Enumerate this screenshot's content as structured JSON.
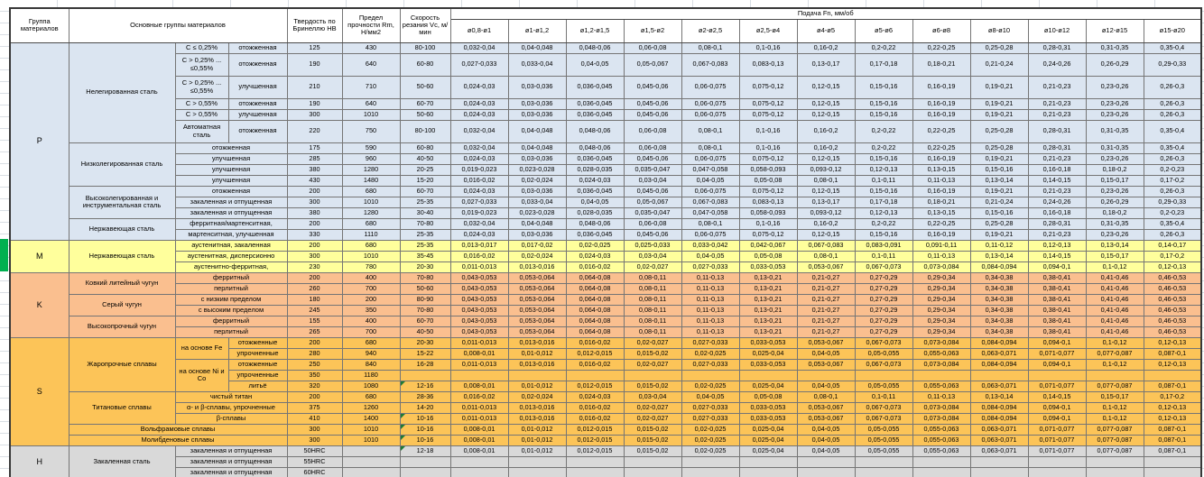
{
  "sheet": {
    "colors": {
      "group_p_blue": "#dbe5f1",
      "group_m_yellow": "#ffff9c",
      "group_k_orange": "#fabf8f",
      "group_s_gold": "#fcc458",
      "group_h_gray": "#d9d9d9",
      "row_marker_green": "#00b050",
      "cell_corner_triangle_green": "#1f7a36"
    }
  },
  "header": {
    "col_group": "Группа материалов",
    "col_main": "Основные группы материалов",
    "col_hb": "Твердость по Бринеллю НВ",
    "col_rm": "Предел прочности Rm, Н/мм2",
    "col_vc": "Скорость резания Vc, м/мин",
    "feed_title": "Подача Fn, мм/об",
    "feed_cols": [
      "ø0,8-ø1",
      "ø1-ø1,2",
      "ø1,2-ø1,5",
      "ø1,5-ø2",
      "ø2-ø2,5",
      "ø2,5-ø4",
      "ø4-ø5",
      "ø5-ø6",
      "ø6-ø8",
      "ø8-ø10",
      "ø10-ø12",
      "ø12-ø15",
      "ø15-ø20"
    ]
  },
  "table": {
    "feed_sets": {
      "A": [
        "0,032-0,04",
        "0,04-0,048",
        "0,048-0,06",
        "0,06-0,08",
        "0,08-0,1",
        "0,1-0,16",
        "0,16-0,2",
        "0,2-0,22",
        "0,22-0,25",
        "0,25-0,28",
        "0,28-0,31",
        "0,31-0,35",
        "0,35-0,4"
      ],
      "B": [
        "0,027-0,033",
        "0,033-0,04",
        "0,04-0,05",
        "0,05-0,067",
        "0,067-0,083",
        "0,083-0,13",
        "0,13-0,17",
        "0,17-0,18",
        "0,18-0,21",
        "0,21-0,24",
        "0,24-0,26",
        "0,26-0,29",
        "0,29-0,33"
      ],
      "C": [
        "0,024-0,03",
        "0,03-0,036",
        "0,036-0,045",
        "0,045-0,06",
        "0,06-0,075",
        "0,075-0,12",
        "0,12-0,15",
        "0,15-0,16",
        "0,16-0,19",
        "0,19-0,21",
        "0,21-0,23",
        "0,23-0,26",
        "0,26-0,3"
      ],
      "D": [
        "0,019-0,023",
        "0,023-0,028",
        "0,028-0,035",
        "0,035-0,047",
        "0,047-0,058",
        "0,058-0,093",
        "0,093-0,12",
        "0,12-0,13",
        "0,13-0,15",
        "0,15-0,16",
        "0,16-0,18",
        "0,18-0,2",
        "0,2-0,23"
      ],
      "E": [
        "0,016-0,02",
        "0,02-0,024",
        "0,024-0,03",
        "0,03-0,04",
        "0,04-0,05",
        "0,05-0,08",
        "0,08-0,1",
        "0,1-0,11",
        "0,11-0,13",
        "0,13-0,14",
        "0,14-0,15",
        "0,15-0,17",
        "0,17-0,2"
      ],
      "F": [
        "0,013-0,017",
        "0,017-0,02",
        "0,02-0,025",
        "0,025-0,033",
        "0,033-0,042",
        "0,042-0,067",
        "0,067-0,083",
        "0,083-0,091",
        "0,091-0,11",
        "0,11-0,12",
        "0,12-0,13",
        "0,13-0,14",
        "0,14-0,17"
      ],
      "G": [
        "0,011-0,013",
        "0,013-0,016",
        "0,016-0,02",
        "0,02-0,027",
        "0,027-0,033",
        "0,033-0,053",
        "0,053-0,067",
        "0,067-0,073",
        "0,073-0,084",
        "0,084-0,094",
        "0,094-0,1",
        "0,1-0,12",
        "0,12-0,13"
      ],
      "H": [
        "0,043-0,053",
        "0,053-0,064",
        "0,064-0,08",
        "0,08-0,11",
        "0,11-0,13",
        "0,13-0,21",
        "0,21-0,27",
        "0,27-0,29",
        "0,29-0,34",
        "0,34-0,38",
        "0,38-0,41",
        "0,41-0,46",
        "0,46-0,53"
      ],
      "I": [
        "0,008-0,01",
        "0,01-0,012",
        "0,012-0,015",
        "0,015-0,02",
        "0,02-0,025",
        "0,025-0,04",
        "0,04-0,05",
        "0,05-0,055",
        "0,055-0,063",
        "0,063-0,071",
        "0,071-0,077",
        "0,077-0,087",
        "0,087-0,1"
      ]
    },
    "rows": [
      {
        "g": [
          "P",
          15
        ],
        "m": [
          "Нелегированная сталь",
          6
        ],
        "s1": [
          "C ≤ 0,25%",
          1
        ],
        "s2": "отожженная",
        "hb": "125",
        "rm": "430",
        "vc": "80-100",
        "fs": "A",
        "c": "p"
      },
      {
        "s1": [
          "C > 0,25% ... ≤0,55%",
          1
        ],
        "s2": "отожженная",
        "hb": "190",
        "rm": "640",
        "vc": "60-80",
        "fs": "B",
        "c": "p",
        "tall": true
      },
      {
        "s1": [
          "C > 0,25% ... ≤0,55%",
          1
        ],
        "s2": "улучшенная",
        "hb": "210",
        "rm": "710",
        "vc": "50-60",
        "fs": "C",
        "c": "p",
        "tall": true
      },
      {
        "s1": [
          "C > 0,55%",
          1
        ],
        "s2": "отожженная",
        "hb": "190",
        "rm": "640",
        "vc": "60-70",
        "fs": "C",
        "c": "p"
      },
      {
        "s1": [
          "C > 0,55%",
          1
        ],
        "s2": "улучшенная",
        "hb": "300",
        "rm": "1010",
        "vc": "50-60",
        "fs": "C",
        "c": "p"
      },
      {
        "s1": [
          "Автоматная сталь",
          1
        ],
        "s2": "отожженная",
        "hb": "220",
        "rm": "750",
        "vc": "80-100",
        "fs": "A",
        "c": "p",
        "tall": true
      },
      {
        "m": [
          "Низколегированная сталь",
          4
        ],
        "s12": "отожженная",
        "hb": "175",
        "rm": "590",
        "vc": "60-80",
        "fs": "A",
        "c": "p"
      },
      {
        "s12": "улучшенная",
        "hb": "285",
        "rm": "960",
        "vc": "40-50",
        "fs": "C",
        "c": "p"
      },
      {
        "s12": "улучшенная",
        "hb": "380",
        "rm": "1280",
        "vc": "20-25",
        "fs": "D",
        "c": "p"
      },
      {
        "s12": "улучшенная",
        "hb": "430",
        "rm": "1480",
        "vc": "15-20",
        "fs": "E",
        "c": "p"
      },
      {
        "m": [
          "Высоколегированная и инструментальная сталь",
          3
        ],
        "s12": "отожженная",
        "hb": "200",
        "rm": "680",
        "vc": "60-70",
        "fs": "C",
        "c": "p"
      },
      {
        "s12": "закаленная и отпущенная",
        "hb": "300",
        "rm": "1010",
        "vc": "25-35",
        "fs": "B",
        "c": "p"
      },
      {
        "s12": "закаленная и отпущенная",
        "hb": "380",
        "rm": "1280",
        "vc": "30-40",
        "fs": "D",
        "c": "p"
      },
      {
        "m": [
          "Нержавеющая сталь",
          2
        ],
        "s12": "ферритная/мартенситная,",
        "hb": "200",
        "rm": "680",
        "vc": "70-80",
        "fs": "A",
        "c": "p"
      },
      {
        "s12": "мартенситная, улучшенная",
        "hb": "330",
        "rm": "1110",
        "vc": "25-35",
        "fs": "C",
        "c": "p"
      },
      {
        "g": [
          "M",
          3
        ],
        "m": [
          "Нержавеющая сталь",
          3
        ],
        "s12": "аустенитная, закаленная",
        "hb": "200",
        "rm": "680",
        "vc": "25-35",
        "fs": "F",
        "c": "m"
      },
      {
        "s12": "аустенитная, дисперсионно",
        "hb": "300",
        "rm": "1010",
        "vc": "35-45",
        "fs": "E",
        "c": "m"
      },
      {
        "s12": "аустенитно-ферритная,",
        "hb": "230",
        "rm": "780",
        "vc": "20-30",
        "fs": "G",
        "c": "m"
      },
      {
        "g": [
          "K",
          6
        ],
        "m": [
          "Ковкий литейный чугун",
          2
        ],
        "s12": "ферритный",
        "hb": "200",
        "rm": "400",
        "vc": "70-80",
        "fs": "H",
        "c": "k"
      },
      {
        "s12": "перлитный",
        "hb": "260",
        "rm": "700",
        "vc": "50-60",
        "fs": "H",
        "c": "k"
      },
      {
        "m": [
          "Серый чугун",
          2
        ],
        "s12": "с низким пределом",
        "hb": "180",
        "rm": "200",
        "vc": "80-90",
        "fs": "H",
        "c": "k"
      },
      {
        "s12": "с высоким пределом",
        "hb": "245",
        "rm": "350",
        "vc": "70-80",
        "fs": "H",
        "c": "k"
      },
      {
        "m": [
          "Высокопрочный чугун",
          2
        ],
        "s12": "ферритный",
        "hb": "155",
        "rm": "400",
        "vc": "60-70",
        "fs": "H",
        "c": "k"
      },
      {
        "s12": "перлитный",
        "hb": "265",
        "rm": "700",
        "vc": "40-50",
        "fs": "H",
        "c": "k"
      },
      {
        "g": [
          "S",
          10
        ],
        "m": [
          "Жаропрочные сплавы",
          5
        ],
        "s1": [
          "на основе Fe",
          2
        ],
        "s2": "отожженные",
        "hb": "200",
        "rm": "680",
        "vc": "20-30",
        "fs": "G",
        "c": "s"
      },
      {
        "s2": "упрочненные",
        "hb": "280",
        "rm": "940",
        "vc": "15-22",
        "fs": "I",
        "c": "s"
      },
      {
        "s1": [
          "на основе Ni и Со",
          3
        ],
        "s2": "отожженные",
        "hb": "250",
        "rm": "840",
        "vc": "16-28",
        "fs": "G",
        "c": "s"
      },
      {
        "s2": "упрочненные",
        "hb": "350",
        "rm": "1180",
        "vc": "",
        "fs": null,
        "c": "s"
      },
      {
        "s2": "литьё",
        "hb": "320",
        "rm": "1080",
        "vc": "12-16",
        "tri": true,
        "fs": "I",
        "c": "s"
      },
      {
        "m": [
          "Титановые сплавы",
          3
        ],
        "s12": "чистый титан",
        "hb": "200",
        "rm": "680",
        "vc": "28-36",
        "fs": "E",
        "c": "s"
      },
      {
        "s12": "α- и β-сплавы, упрочненные",
        "hb": "375",
        "rm": "1260",
        "vc": "14-20",
        "fs": "G",
        "c": "s"
      },
      {
        "s12": "β-сплавы",
        "hb": "410",
        "rm": "1400",
        "vc": "10-16",
        "tri": true,
        "fs": "G",
        "c": "s"
      },
      {
        "m3": "Вольфрамовые сплавы",
        "hb": "300",
        "rm": "1010",
        "vc": "10-16",
        "tri": true,
        "fs": "I",
        "c": "s"
      },
      {
        "m3": "Молибденовые сплавы",
        "hb": "300",
        "rm": "1010",
        "vc": "10-16",
        "tri": true,
        "fs": "I",
        "c": "s"
      },
      {
        "g": [
          "H",
          3
        ],
        "m": [
          "Закаленная сталь",
          3
        ],
        "s12": "закаленная и отпущенная",
        "hb": "50HRC",
        "rm": "",
        "vc": "12-18",
        "tri": true,
        "fs": "I",
        "c": "h"
      },
      {
        "s12": "закаленная и отпущенная",
        "hb": "55HRC",
        "rm": "",
        "vc": "",
        "fs": null,
        "c": "h"
      },
      {
        "s12": "закаленная и отпущенная",
        "hb": "60HRC",
        "rm": "",
        "vc": "",
        "fs": null,
        "c": "h"
      }
    ]
  }
}
